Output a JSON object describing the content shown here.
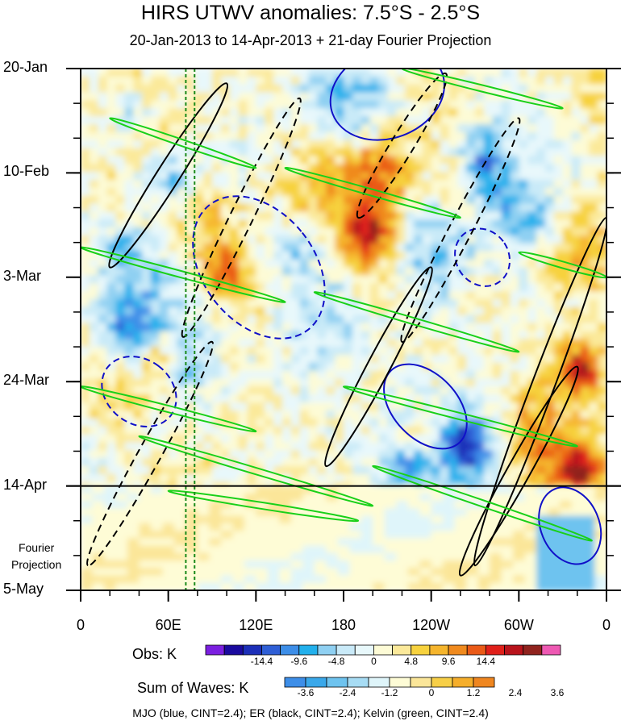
{
  "title": "HIRS UTWV anomalies: 7.5°S - 2.5°S",
  "subtitle": "20-Jan-2013 to 14-Apr-2013 + 21-day Fourier Projection",
  "projection_label_line1": "Fourier",
  "projection_label_line2": "Projection",
  "footer": "MJO (blue, CINT=2.4); ER (black, CINT=2.4); Kelvin (green, CINT=2.4)",
  "obs_colorbar": {
    "title": "Obs: K",
    "tick_labels": [
      "-14.4",
      "-9.6",
      "-4.8",
      "0",
      "4.8",
      "9.6",
      "14.4"
    ],
    "colors": [
      "#7b1fe0",
      "#1a0a9e",
      "#1c2fb8",
      "#2f5fd6",
      "#3d8ee8",
      "#22b0ec",
      "#8fd0f2",
      "#c9eaf8",
      "#e8f8fb",
      "#fdfbd6",
      "#fbe99a",
      "#f7d23e",
      "#f5b52d",
      "#f08a1e",
      "#ea5a17",
      "#e0201a",
      "#b8131b",
      "#90231e",
      "#ee59b3"
    ]
  },
  "waves_colorbar": {
    "title": "Sum of Waves: K",
    "tick_labels": [
      "-3.6",
      "-2.4",
      "-1.2",
      "0",
      "1.2",
      "2.4",
      "3.6"
    ],
    "colors": [
      "#3d8ee8",
      "#3aa8ea",
      "#6ec3ef",
      "#a7dcf4",
      "#dff5fa",
      "#fefcd6",
      "#fbe699",
      "#f7cf47",
      "#f5ae2b",
      "#ef8620"
    ]
  },
  "chart_data": {
    "type": "heatmap",
    "description_axes": "Hovmoller: longitude vs time",
    "x_tick_labels": [
      "0",
      "60E",
      "120E",
      "180",
      "120W",
      "60W",
      "0"
    ],
    "x_values_deg_east": [
      0,
      60,
      120,
      180,
      240,
      300,
      360
    ],
    "y_tick_labels": [
      "20-Jan",
      "10-Feb",
      "3-Mar",
      "24-Mar",
      "14-Apr",
      "5-May"
    ],
    "y_dates": [
      "2013-01-20",
      "2013-02-10",
      "2013-03-03",
      "2013-03-24",
      "2013-04-14",
      "2013-05-05"
    ],
    "observation_end": "2013-04-14",
    "projection_end": "2013-05-05",
    "reference_lines_deg_east": [
      72,
      78
    ],
    "variable": "UTWV anomaly",
    "units": "K",
    "contours": [
      {
        "name": "MJO",
        "color": "#1010c8",
        "cint": 2.4
      },
      {
        "name": "ER",
        "color": "#000000",
        "cint": 2.4
      },
      {
        "name": "Kelvin",
        "color": "#19d019",
        "cint": 2.4
      }
    ],
    "mjo_ellipses": [
      {
        "lon": 210,
        "date_offset_days": 5,
        "lon_radius": 40,
        "day_radius": 9,
        "tilt": 0.18
      },
      {
        "lon": 122,
        "date_offset_days": 40,
        "lon_radius": 38,
        "day_radius": 16,
        "tilt": 0.35
      },
      {
        "lon": 236,
        "date_offset_days": 68,
        "lon_radius": 22,
        "day_radius": 10,
        "tilt": 0.4
      },
      {
        "lon": 40,
        "date_offset_days": 65,
        "lon_radius": 22,
        "day_radius": 8,
        "tilt": 0.5
      },
      {
        "lon": 335,
        "date_offset_days": 92,
        "lon_radius": 20,
        "day_radius": 8,
        "tilt": 0.2
      },
      {
        "lon": 275,
        "date_offset_days": 38,
        "lon_radius": 18,
        "day_radius": 6,
        "tilt": 0.3
      }
    ],
    "er_lines": [
      {
        "lon_start": 100,
        "lon_end": 20,
        "date_offset_start": 3,
        "date_offset_end": 40
      },
      {
        "lon_start": 150,
        "lon_end": 70,
        "date_offset_start": 6,
        "date_offset_end": 54
      },
      {
        "lon_start": 240,
        "lon_end": 168,
        "date_offset_start": 40,
        "date_offset_end": 80
      },
      {
        "lon_start": 300,
        "lon_end": 220,
        "date_offset_start": 10,
        "date_offset_end": 55
      },
      {
        "lon_start": 360,
        "lon_end": 270,
        "date_offset_start": 30,
        "date_offset_end": 100
      },
      {
        "lon_start": 90,
        "lon_end": 5,
        "date_offset_start": 55,
        "date_offset_end": 100
      },
      {
        "lon_start": 340,
        "lon_end": 260,
        "date_offset_start": 60,
        "date_offset_end": 102
      },
      {
        "lon_start": 250,
        "lon_end": 190,
        "date_offset_start": 1,
        "date_offset_end": 30
      }
    ],
    "kelvin_lines": [
      {
        "lon_start": 20,
        "lon_end": 120,
        "date_offset_start": 10,
        "date_offset_end": 20
      },
      {
        "lon_start": 140,
        "lon_end": 260,
        "date_offset_start": 20,
        "date_offset_end": 30
      },
      {
        "lon_start": 0,
        "lon_end": 140,
        "date_offset_start": 36,
        "date_offset_end": 47
      },
      {
        "lon_start": 160,
        "lon_end": 300,
        "date_offset_start": 45,
        "date_offset_end": 57
      },
      {
        "lon_start": 300,
        "lon_end": 360,
        "date_offset_start": 37,
        "date_offset_end": 42
      },
      {
        "lon_start": 0,
        "lon_end": 120,
        "date_offset_start": 64,
        "date_offset_end": 73
      },
      {
        "lon_start": 180,
        "lon_end": 340,
        "date_offset_start": 64,
        "date_offset_end": 76
      },
      {
        "lon_start": 40,
        "lon_end": 200,
        "date_offset_start": 74,
        "date_offset_end": 88
      },
      {
        "lon_start": 200,
        "lon_end": 350,
        "date_offset_start": 80,
        "date_offset_end": 95
      },
      {
        "lon_start": 60,
        "lon_end": 190,
        "date_offset_start": 85,
        "date_offset_end": 91
      },
      {
        "lon_start": 220,
        "lon_end": 330,
        "date_offset_start": 0,
        "date_offset_end": 8
      }
    ]
  }
}
